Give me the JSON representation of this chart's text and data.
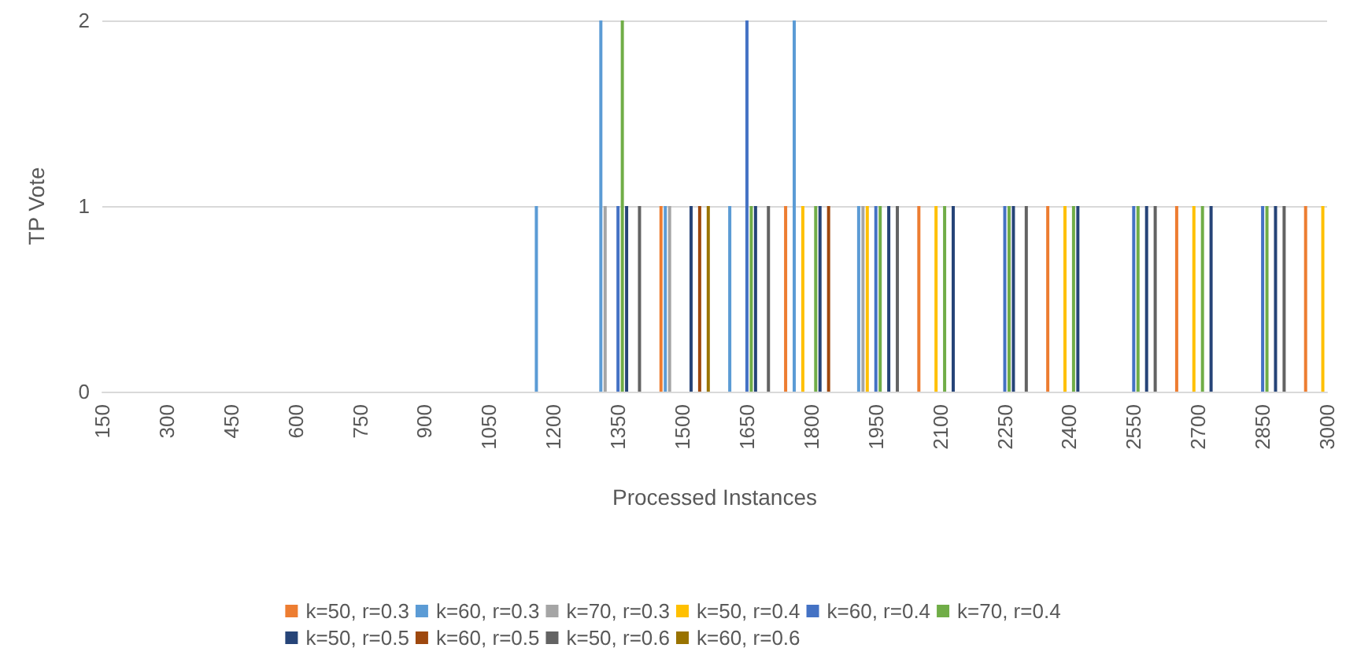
{
  "chart_data": {
    "type": "bar",
    "xlabel": "Processed Instances",
    "ylabel": "TP Vote",
    "xlim": [
      150,
      3000
    ],
    "xticks": [
      150,
      300,
      450,
      600,
      750,
      900,
      1050,
      1200,
      1350,
      1500,
      1650,
      1800,
      1950,
      2100,
      2250,
      2400,
      2550,
      2700,
      2850,
      3000
    ],
    "ylim": [
      0,
      2
    ],
    "yticks": [
      0,
      1,
      2
    ],
    "grid": "y",
    "legend": "bottom",
    "series": [
      {
        "name": "k=50, r=0.3",
        "color": "#ed7d31",
        "x": [
          1450,
          1740,
          2050,
          2350,
          2650,
          2950
        ],
        "values": [
          1,
          1,
          1,
          1,
          1,
          1
        ]
      },
      {
        "name": "k=60, r=0.3",
        "color": "#5b9bd5",
        "x": [
          1160,
          1310,
          1460,
          1610,
          1760,
          1910
        ],
        "values": [
          1,
          2,
          1,
          1,
          2,
          1
        ]
      },
      {
        "name": "k=70, r=0.3",
        "color": "#a5a5a5",
        "x": [
          1320,
          1470,
          1920
        ],
        "values": [
          1,
          1,
          1
        ]
      },
      {
        "name": "k=50, r=0.4",
        "color": "#ffc000",
        "x": [
          1780,
          1930,
          2090,
          2390,
          2690,
          2990
        ],
        "values": [
          1,
          1,
          1,
          1,
          1,
          1
        ]
      },
      {
        "name": "k=60, r=0.4",
        "color": "#4472c4",
        "x": [
          1350,
          1650,
          1950,
          2250,
          2550,
          2850
        ],
        "values": [
          1,
          2,
          1,
          1,
          1,
          1
        ]
      },
      {
        "name": "k=70, r=0.4",
        "color": "#70ad47",
        "x": [
          1360,
          1660,
          1810,
          1960,
          2110,
          2260,
          2410,
          2560,
          2710,
          2860
        ],
        "values": [
          2,
          1,
          1,
          1,
          1,
          1,
          1,
          1,
          1,
          1
        ]
      },
      {
        "name": "k=50, r=0.5",
        "color": "#264478",
        "x": [
          1370,
          1520,
          1670,
          1820,
          1980,
          2130,
          2270,
          2420,
          2580,
          2730,
          2880
        ],
        "values": [
          1,
          1,
          1,
          1,
          1,
          1,
          1,
          1,
          1,
          1,
          1
        ]
      },
      {
        "name": "k=60, r=0.5",
        "color": "#9e480e",
        "x": [
          1540,
          1840
        ],
        "values": [
          1,
          1
        ]
      },
      {
        "name": "k=50, r=0.6",
        "color": "#636363",
        "x": [
          1400,
          1700,
          2000,
          2300,
          2600,
          2900
        ],
        "values": [
          1,
          1,
          1,
          1,
          1,
          1
        ]
      },
      {
        "name": "k=60, r=0.6",
        "color": "#997300",
        "x": [
          1560
        ],
        "values": [
          1
        ]
      }
    ]
  }
}
